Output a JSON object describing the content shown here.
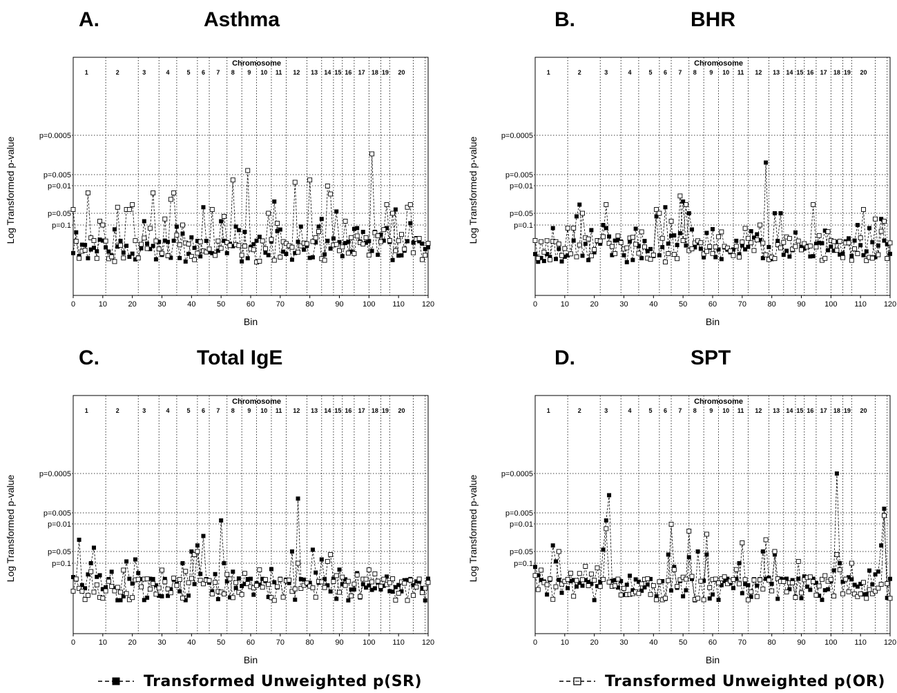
{
  "figure": {
    "legend": [
      {
        "label": "Transformed Unweighted p(SR)",
        "marker": "filled-square"
      },
      {
        "label": "Transformed Unweighted p(OR)",
        "marker": "open-square"
      }
    ]
  },
  "chart_data": [
    {
      "type": "line",
      "panel_letter": "A.",
      "title": "Asthma",
      "xlabel": "Bin",
      "ylabel": "Log Transformed p-value",
      "xlim": [
        0,
        120
      ],
      "x_ticks": [
        0,
        10,
        20,
        30,
        40,
        50,
        60,
        70,
        80,
        90,
        100,
        110,
        120
      ],
      "y_ref_lines": [
        "p=0.0005",
        "p=0.005",
        "p=0.01",
        "p=0.05",
        "p=0.1"
      ],
      "chromosome_header": "Chromosome",
      "chromosome_labels": [
        "1",
        "2",
        "3",
        "4",
        "5",
        "6",
        "7",
        "8",
        "9",
        "10",
        "11",
        "12",
        "13",
        "14",
        "15",
        "16",
        "17",
        "18",
        "19",
        "20"
      ],
      "series": [
        {
          "name": "Transformed Unweighted p(SR)",
          "marker": "filled",
          "sharp_peaks": [
            [
              24,
              0.08
            ],
            [
              35,
              0.11
            ],
            [
              44,
              0.035
            ],
            [
              50,
              0.08
            ],
            [
              55,
              0.11
            ],
            [
              58,
              0.15
            ],
            [
              63,
              0.2
            ],
            [
              68,
              0.025
            ],
            [
              77,
              0.11
            ],
            [
              83,
              0.11
            ],
            [
              84,
              0.07
            ],
            [
              89,
              0.045
            ],
            [
              96,
              0.12
            ],
            [
              98,
              0.15
            ],
            [
              102,
              0.15
            ],
            [
              106,
              0.12
            ],
            [
              109,
              0.04
            ],
            [
              114,
              0.09
            ],
            [
              118,
              0.3
            ]
          ],
          "seed": 11
        },
        {
          "name": "Transformed Unweighted p(OR)",
          "marker": "open",
          "sharp_peaks": [
            [
              0,
              0.04
            ],
            [
              5,
              0.015
            ],
            [
              9,
              0.08
            ],
            [
              10,
              0.1
            ],
            [
              15,
              0.035
            ],
            [
              18,
              0.04
            ],
            [
              19,
              0.04
            ],
            [
              20,
              0.03
            ],
            [
              27,
              0.015
            ],
            [
              31,
              0.07
            ],
            [
              33,
              0.022
            ],
            [
              34,
              0.015
            ],
            [
              37,
              0.1
            ],
            [
              47,
              0.04
            ],
            [
              51,
              0.06
            ],
            [
              54,
              0.007
            ],
            [
              59,
              0.004
            ],
            [
              66,
              0.05
            ],
            [
              69,
              0.09
            ],
            [
              75,
              0.008
            ],
            [
              80,
              0.007
            ],
            [
              86,
              0.01
            ],
            [
              87,
              0.016
            ],
            [
              92,
              0.08
            ],
            [
              101,
              0.0015
            ],
            [
              106,
              0.03
            ],
            [
              108,
              0.05
            ],
            [
              113,
              0.035
            ],
            [
              114,
              0.03
            ]
          ],
          "seed": 23
        }
      ]
    },
    {
      "type": "line",
      "panel_letter": "B.",
      "title": "BHR",
      "xlabel": "Bin",
      "ylabel": "Log Transformed p-value",
      "xlim": [
        0,
        120
      ],
      "x_ticks": [
        0,
        10,
        20,
        30,
        40,
        50,
        60,
        70,
        80,
        90,
        100,
        110,
        120
      ],
      "y_ref_lines": [
        "p=0.0005",
        "p=0.005",
        "p=0.01",
        "p=0.05",
        "p=0.1"
      ],
      "chromosome_header": "Chromosome",
      "chromosome_labels": [
        "1",
        "2",
        "3",
        "4",
        "5",
        "6",
        "7",
        "8",
        "9",
        "10",
        "11",
        "12",
        "13",
        "14",
        "15",
        "16",
        "17",
        "18",
        "19",
        "20"
      ],
      "series": [
        {
          "name": "Transformed Unweighted p(SR)",
          "marker": "filled",
          "sharp_peaks": [
            [
              6,
              0.12
            ],
            [
              14,
              0.06
            ],
            [
              15,
              0.03
            ],
            [
              23,
              0.1
            ],
            [
              24,
              0.12
            ],
            [
              41,
              0.06
            ],
            [
              44,
              0.035
            ],
            [
              50,
              0.025
            ],
            [
              52,
              0.05
            ],
            [
              78,
              0.0025
            ],
            [
              81,
              0.05
            ],
            [
              83,
              0.05
            ],
            [
              109,
              0.1
            ],
            [
              113,
              0.12
            ],
            [
              117,
              0.07
            ]
          ],
          "seed": 37
        },
        {
          "name": "Transformed Unweighted p(OR)",
          "marker": "open",
          "sharp_peaks": [
            [
              0,
              0.25
            ],
            [
              11,
              0.12
            ],
            [
              13,
              0.12
            ],
            [
              16,
              0.05
            ],
            [
              24,
              0.03
            ],
            [
              36,
              0.15
            ],
            [
              41,
              0.04
            ],
            [
              42,
              0.05
            ],
            [
              46,
              0.08
            ],
            [
              49,
              0.018
            ],
            [
              51,
              0.03
            ],
            [
              63,
              0.15
            ],
            [
              76,
              0.1
            ],
            [
              94,
              0.03
            ],
            [
              111,
              0.04
            ],
            [
              115,
              0.07
            ],
            [
              118,
              0.08
            ]
          ],
          "seed": 41
        }
      ]
    },
    {
      "type": "line",
      "panel_letter": "C.",
      "title": "Total IgE",
      "xlabel": "Bin",
      "ylabel": "Log Transformed p-value",
      "xlim": [
        0,
        120
      ],
      "x_ticks": [
        0,
        10,
        20,
        30,
        40,
        50,
        60,
        70,
        80,
        90,
        100,
        110,
        120
      ],
      "y_ref_lines": [
        "p=0.0005",
        "p=0.005",
        "p=0.01",
        "p=0.05",
        "p=0.1"
      ],
      "chromosome_header": "Chromosome",
      "chromosome_labels": [
        "1",
        "2",
        "3",
        "4",
        "5",
        "6",
        "7",
        "8",
        "9",
        "10",
        "11",
        "12",
        "13",
        "14",
        "15",
        "16",
        "17",
        "18",
        "19",
        "20"
      ],
      "series": [
        {
          "name": "Transformed Unweighted p(SR)",
          "marker": "filled",
          "sharp_peaks": [
            [
              2,
              0.025
            ],
            [
              6,
              0.1
            ],
            [
              7,
              0.04
            ],
            [
              18,
              0.09
            ],
            [
              21,
              0.08
            ],
            [
              37,
              0.1
            ],
            [
              40,
              0.05
            ],
            [
              42,
              0.035
            ],
            [
              44,
              0.02
            ],
            [
              50,
              0.008
            ],
            [
              51,
              0.1
            ],
            [
              76,
              0.0022
            ],
            [
              74,
              0.05
            ],
            [
              81,
              0.045
            ],
            [
              84,
              0.08
            ]
          ],
          "seed": 53
        },
        {
          "name": "Transformed Unweighted p(OR)",
          "marker": "open",
          "sharp_peaks": [
            [
              17,
              0.15
            ],
            [
              30,
              0.15
            ],
            [
              41,
              0.06
            ],
            [
              42,
              0.05
            ],
            [
              76,
              0.1
            ],
            [
              86,
              0.09
            ],
            [
              87,
              0.06
            ]
          ],
          "seed": 61
        }
      ]
    },
    {
      "type": "line",
      "panel_letter": "D.",
      "title": "SPT",
      "xlabel": "Bin",
      "ylabel": "Log Transformed p-value",
      "xlim": [
        0,
        120
      ],
      "x_ticks": [
        0,
        10,
        20,
        30,
        40,
        50,
        60,
        70,
        80,
        90,
        100,
        110,
        120
      ],
      "y_ref_lines": [
        "p=0.0005",
        "p=0.005",
        "p=0.01",
        "p=0.05",
        "p=0.1"
      ],
      "chromosome_header": "Chromosome",
      "chromosome_labels": [
        "1",
        "2",
        "3",
        "4",
        "5",
        "6",
        "7",
        "8",
        "9",
        "10",
        "11",
        "12",
        "13",
        "14",
        "15",
        "16",
        "17",
        "18",
        "19",
        "20"
      ],
      "series": [
        {
          "name": "Transformed Unweighted p(SR)",
          "marker": "filled",
          "sharp_peaks": [
            [
              6,
              0.035
            ],
            [
              7,
              0.09
            ],
            [
              23,
              0.045
            ],
            [
              24,
              0.008
            ],
            [
              25,
              0.0018
            ],
            [
              45,
              0.06
            ],
            [
              52,
              0.07
            ],
            [
              55,
              0.05
            ],
            [
              58,
              0.06
            ],
            [
              69,
              0.1
            ],
            [
              77,
              0.05
            ],
            [
              81,
              0.06
            ],
            [
              102,
              0.0005
            ],
            [
              103,
              0.1
            ],
            [
              117,
              0.035
            ],
            [
              118,
              0.004
            ]
          ],
          "seed": 71
        },
        {
          "name": "Transformed Unweighted p(OR)",
          "marker": "open",
          "sharp_peaks": [
            [
              2,
              0.15
            ],
            [
              8,
              0.05
            ],
            [
              12,
              0.18
            ],
            [
              24,
              0.013
            ],
            [
              46,
              0.01
            ],
            [
              52,
              0.015
            ],
            [
              58,
              0.018
            ],
            [
              70,
              0.03
            ],
            [
              78,
              0.025
            ],
            [
              81,
              0.05
            ],
            [
              89,
              0.09
            ],
            [
              102,
              0.06
            ],
            [
              107,
              0.1
            ],
            [
              118,
              0.006
            ]
          ],
          "seed": 83
        }
      ]
    }
  ]
}
